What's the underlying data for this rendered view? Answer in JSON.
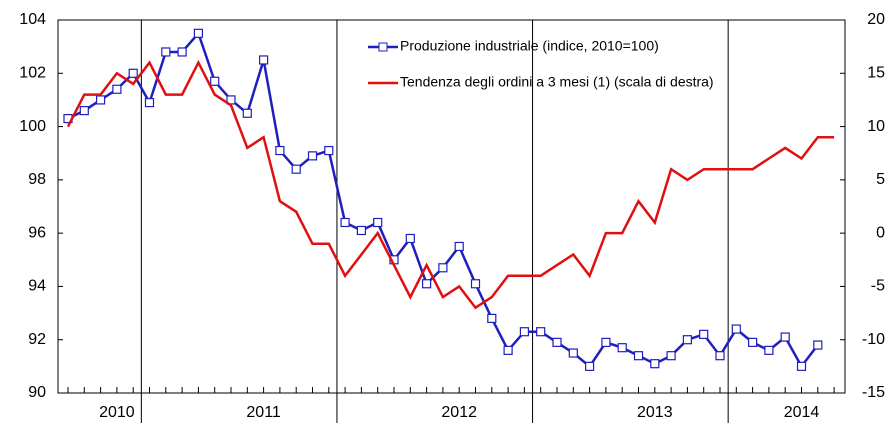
{
  "chart_data": {
    "type": "line",
    "categories": [
      null,
      null,
      null,
      "2010",
      null,
      null,
      null,
      null,
      null,
      null,
      null,
      null,
      "2011",
      null,
      null,
      null,
      null,
      null,
      null,
      null,
      null,
      null,
      null,
      null,
      "2012",
      null,
      null,
      null,
      null,
      null,
      null,
      null,
      null,
      null,
      null,
      null,
      "2013",
      null,
      null,
      null,
      null,
      null,
      null,
      null,
      null,
      "2014",
      null,
      null
    ],
    "series": [
      {
        "name": "Produzione industriale (indice, 2010=100)",
        "color": "#1f1fbf",
        "marker": "square",
        "values": [
          100.3,
          100.6,
          101.0,
          101.4,
          102.0,
          100.9,
          102.8,
          102.8,
          103.5,
          101.7,
          101.0,
          100.5,
          102.5,
          99.1,
          98.4,
          98.9,
          99.1,
          96.4,
          96.1,
          96.4,
          95.0,
          95.8,
          94.1,
          94.7,
          95.5,
          94.1,
          92.8,
          91.6,
          92.3,
          92.3,
          91.9,
          91.5,
          91.0,
          91.9,
          91.7,
          91.4,
          91.1,
          91.4,
          92.0,
          92.2,
          91.4,
          92.4,
          91.9,
          91.6,
          92.1,
          91.0,
          91.8,
          null
        ]
      },
      {
        "name": "Tendenza degli ordini a 3 mesi (1) (scala di destra)",
        "color": "#e01010",
        "axis": "y2",
        "values": [
          10,
          13,
          13,
          15,
          14,
          16,
          13,
          13,
          16,
          13,
          12,
          8,
          9,
          3,
          2,
          -1,
          -1,
          -4,
          -2,
          0,
          -3,
          -6,
          -3,
          -6,
          -5,
          -7,
          -6,
          -4,
          -4,
          -4,
          -3,
          -2,
          -4,
          0,
          0,
          3,
          1,
          6,
          5,
          6,
          6,
          6,
          6,
          7,
          8,
          7,
          9,
          9
        ]
      }
    ],
    "ylim": [
      90,
      104
    ],
    "yticks": [
      90,
      92,
      94,
      96,
      98,
      100,
      102,
      104
    ],
    "y2lim": [
      -15,
      20
    ],
    "y2ticks": [
      -15,
      -10,
      -5,
      0,
      5,
      10,
      15,
      20
    ],
    "grid": false,
    "legend": "top"
  }
}
